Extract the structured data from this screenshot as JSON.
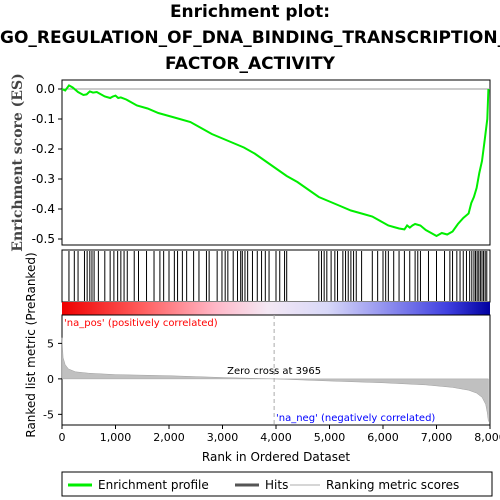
{
  "chart_data": {
    "type": "line",
    "title_lines": [
      "Enrichment plot:",
      "GO_REGULATION_OF_DNA_BINDING_TRANSCRIPTION_",
      "FACTOR_ACTIVITY"
    ],
    "es_panel": {
      "ylabel": "Enrichment score (ES)",
      "ylim": [
        -0.52,
        0.03
      ],
      "yticks": [
        "0.0",
        "-0.1",
        "-0.2",
        "-0.3",
        "-0.4",
        "-0.5"
      ],
      "ytick_values": [
        0.0,
        -0.1,
        -0.2,
        -0.3,
        -0.4,
        -0.5
      ],
      "series": [
        {
          "name": "Enrichment profile",
          "color": "#00ee00",
          "x": [
            0,
            60,
            130,
            200,
            300,
            400,
            460,
            520,
            580,
            650,
            700,
            800,
            900,
            950,
            1000,
            1050,
            1100,
            1200,
            1300,
            1400,
            1600,
            1800,
            2000,
            2100,
            2200,
            2400,
            2600,
            2800,
            3000,
            3200,
            3400,
            3600,
            3800,
            4000,
            4200,
            4400,
            4600,
            4800,
            5000,
            5200,
            5400,
            5600,
            5800,
            6000,
            6100,
            6200,
            6300,
            6400,
            6450,
            6500,
            6550,
            6600,
            6700,
            6800,
            6900,
            7000,
            7100,
            7200,
            7300,
            7400,
            7500,
            7600,
            7650,
            7700,
            7750,
            7800,
            7850,
            7900,
            7950,
            7970
          ],
          "y": [
            0.0,
            -0.005,
            0.012,
            0.005,
            -0.01,
            -0.02,
            -0.018,
            -0.008,
            -0.012,
            -0.01,
            -0.015,
            -0.025,
            -0.03,
            -0.025,
            -0.022,
            -0.03,
            -0.028,
            -0.035,
            -0.045,
            -0.055,
            -0.065,
            -0.08,
            -0.09,
            -0.095,
            -0.1,
            -0.11,
            -0.13,
            -0.15,
            -0.165,
            -0.18,
            -0.195,
            -0.215,
            -0.24,
            -0.265,
            -0.29,
            -0.31,
            -0.335,
            -0.36,
            -0.375,
            -0.39,
            -0.405,
            -0.415,
            -0.425,
            -0.445,
            -0.455,
            -0.46,
            -0.465,
            -0.468,
            -0.455,
            -0.462,
            -0.455,
            -0.45,
            -0.455,
            -0.47,
            -0.48,
            -0.49,
            -0.48,
            -0.485,
            -0.475,
            -0.45,
            -0.43,
            -0.415,
            -0.38,
            -0.36,
            -0.33,
            -0.28,
            -0.24,
            -0.17,
            -0.1,
            0.0
          ]
        }
      ]
    },
    "hits": {
      "label": "Hits",
      "positions": [
        130,
        230,
        300,
        420,
        470,
        520,
        560,
        600,
        680,
        800,
        900,
        970,
        1040,
        1100,
        1160,
        1220,
        1350,
        1430,
        1580,
        1720,
        1830,
        1900,
        2000,
        2100,
        2160,
        2250,
        2330,
        2460,
        2560,
        2700,
        2750,
        2900,
        2990,
        3050,
        3100,
        3200,
        3280,
        3340,
        3370,
        3420,
        3470,
        3560,
        3650,
        3730,
        3800,
        3870,
        4000,
        4070,
        4160,
        4200,
        4800,
        4850,
        4900,
        4950,
        5030,
        5100,
        5150,
        5250,
        5300,
        5350,
        5400,
        5450,
        5500,
        5600,
        5800,
        5900,
        6000,
        6050,
        6100,
        6200,
        6300,
        6400,
        6500,
        6600,
        6650,
        6700,
        6850,
        7000,
        7150,
        7250,
        7300,
        7380,
        7440,
        7500,
        7560,
        7620,
        7660,
        7700,
        7730,
        7760,
        7790,
        7820,
        7850,
        7880,
        7910,
        7940
      ]
    },
    "ranking": {
      "ylabel": "Ranked list metric (PreRanked)",
      "xlabel": "Rank in Ordered Dataset",
      "ylim": [
        -6.5,
        9
      ],
      "yticks": [
        "5",
        "0",
        "-5"
      ],
      "ytick_values": [
        5,
        0,
        -5
      ],
      "xticks": [
        "0",
        "1,000",
        "2,000",
        "3,000",
        "4,000",
        "5,000",
        "6,000",
        "7,000",
        "8,000"
      ],
      "xtick_values": [
        0,
        1000,
        2000,
        3000,
        4000,
        5000,
        6000,
        7000,
        8000
      ],
      "x": [
        0,
        20,
        60,
        120,
        250,
        500,
        1000,
        2000,
        3000,
        3965,
        5000,
        6000,
        6800,
        7300,
        7600,
        7750,
        7850,
        7920,
        7950,
        7970
      ],
      "y": [
        5.8,
        3.0,
        2.0,
        1.4,
        1.0,
        0.8,
        0.6,
        0.45,
        0.2,
        0.0,
        -0.3,
        -0.55,
        -0.85,
        -1.2,
        -1.6,
        -2.0,
        -2.6,
        -3.6,
        -4.8,
        -6.0
      ],
      "fill_color": "#c0c0c0"
    },
    "x_max": 8000,
    "zero_cross": {
      "text": "Zero cross at 3965",
      "value": 3965
    },
    "pos_label": "'na_pos' (positively correlated)",
    "neg_label": "'na_neg' (negatively correlated)",
    "legend": [
      {
        "name": "Enrichment profile",
        "color": "#00ee00"
      },
      {
        "name": "Hits",
        "color": "#555555"
      },
      {
        "name": "Ranking metric scores",
        "color": "#c8c8c8"
      }
    ],
    "colors": {
      "pos_label": "#ff0000",
      "neg_label": "#0000ff",
      "hits": "#000000"
    }
  }
}
